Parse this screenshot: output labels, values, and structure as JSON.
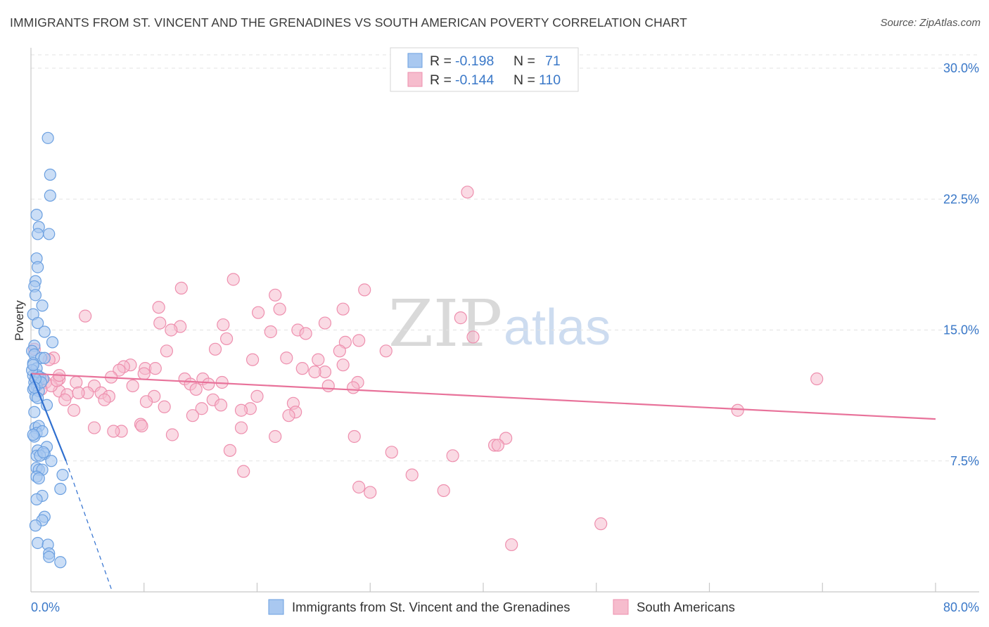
{
  "header": {
    "title": "IMMIGRANTS FROM ST. VINCENT AND THE GRENADINES VS SOUTH AMERICAN POVERTY CORRELATION CHART",
    "source": "Source: ZipAtlas.com"
  },
  "stats": {
    "rows": [
      {
        "r_label": "R =",
        "r_value": "-0.198",
        "n_label": "N =",
        "n_value": "71"
      },
      {
        "r_label": "R =",
        "r_value": "-0.144",
        "n_label": "N =",
        "n_value": "110"
      }
    ]
  },
  "legend": {
    "items": [
      "Immigrants from St. Vincent and the Grenadines",
      "South Americans"
    ]
  },
  "watermark": {
    "zip": "ZIP",
    "atlas": "atlas"
  },
  "colors": {
    "blue_fill": "#a9c8f0",
    "blue_stroke": "#6a9fe0",
    "blue_line": "#2f6fcf",
    "pink_fill": "#f6bccd",
    "pink_stroke": "#ee8fae",
    "pink_line": "#e8729a",
    "tick_text": "#3a78c8",
    "grid": "#e3e3e3"
  },
  "chart_data": {
    "type": "scatter",
    "title": "IMMIGRANTS FROM ST. VINCENT AND THE GRENADINES VS SOUTH AMERICAN POVERTY CORRELATION CHART",
    "xlabel": "",
    "ylabel": "Poverty",
    "xlim": [
      0,
      80
    ],
    "ylim": [
      0,
      30.5
    ],
    "x_tick_labels": [
      "0.0%",
      "80.0%"
    ],
    "y_ticks": [
      7.5,
      15.0,
      22.5,
      30.0
    ],
    "y_tick_labels": [
      "7.5%",
      "15.0%",
      "22.5%",
      "30.0%"
    ],
    "grid": "horizontal dashed",
    "legend_position": "bottom-center",
    "series": [
      {
        "name": "Immigrants from St. Vincent and the Grenadines",
        "color": "#6a9fe0",
        "R": -0.198,
        "N": 71,
        "trend": {
          "x": [
            0,
            3.1
          ],
          "y": [
            12.5,
            7.5
          ],
          "dashed_to": {
            "x": 7.2,
            "y": 0
          }
        },
        "points": [
          [
            1.5,
            26.0
          ],
          [
            1.7,
            23.9
          ],
          [
            1.7,
            22.7
          ],
          [
            0.5,
            21.6
          ],
          [
            0.7,
            20.9
          ],
          [
            0.6,
            20.5
          ],
          [
            1.6,
            20.5
          ],
          [
            0.5,
            19.1
          ],
          [
            0.6,
            18.6
          ],
          [
            0.4,
            17.8
          ],
          [
            0.3,
            17.5
          ],
          [
            0.4,
            17.0
          ],
          [
            1.0,
            16.4
          ],
          [
            0.2,
            15.9
          ],
          [
            0.6,
            15.4
          ],
          [
            1.2,
            14.9
          ],
          [
            1.9,
            14.3
          ],
          [
            0.3,
            14.1
          ],
          [
            0.1,
            13.8
          ],
          [
            0.3,
            13.6
          ],
          [
            0.9,
            13.4
          ],
          [
            1.2,
            13.4
          ],
          [
            0.2,
            13.1
          ],
          [
            0.5,
            12.8
          ],
          [
            0.2,
            12.4
          ],
          [
            0.6,
            12.4
          ],
          [
            0.8,
            12.3
          ],
          [
            1.1,
            12.2
          ],
          [
            0.3,
            12.0
          ],
          [
            0.5,
            11.8
          ],
          [
            0.2,
            11.6
          ],
          [
            0.7,
            11.5
          ],
          [
            0.4,
            11.2
          ],
          [
            0.6,
            11.1
          ],
          [
            1.4,
            10.7
          ],
          [
            0.3,
            10.3
          ],
          [
            0.4,
            9.4
          ],
          [
            0.7,
            9.5
          ],
          [
            0.5,
            9.1
          ],
          [
            1.0,
            9.2
          ],
          [
            0.3,
            8.9
          ],
          [
            1.4,
            8.3
          ],
          [
            0.6,
            8.1
          ],
          [
            1.2,
            7.9
          ],
          [
            0.5,
            7.8
          ],
          [
            0.8,
            7.8
          ],
          [
            1.8,
            7.5
          ],
          [
            0.5,
            7.1
          ],
          [
            0.7,
            7.0
          ],
          [
            1.0,
            7.0
          ],
          [
            2.8,
            6.7
          ],
          [
            0.5,
            6.6
          ],
          [
            0.7,
            6.5
          ],
          [
            2.6,
            5.9
          ],
          [
            1.0,
            5.5
          ],
          [
            0.5,
            5.3
          ],
          [
            1.2,
            4.3
          ],
          [
            1.0,
            4.1
          ],
          [
            0.4,
            3.8
          ],
          [
            0.6,
            2.8
          ],
          [
            1.5,
            2.7
          ],
          [
            1.6,
            2.2
          ],
          [
            1.6,
            2.0
          ],
          [
            2.6,
            1.7
          ],
          [
            0.1,
            12.7
          ],
          [
            0.2,
            9.0
          ],
          [
            0.9,
            12.0
          ],
          [
            0.4,
            12.2
          ],
          [
            0.3,
            11.7
          ],
          [
            1.1,
            8.0
          ],
          [
            0.2,
            13.0
          ]
        ]
      },
      {
        "name": "South Americans",
        "color": "#ee8fae",
        "R": -0.144,
        "N": 110,
        "trend": {
          "x": [
            0,
            80
          ],
          "y": [
            12.5,
            9.9
          ]
        },
        "points": [
          [
            38.6,
            22.9
          ],
          [
            17.9,
            17.9
          ],
          [
            13.3,
            17.4
          ],
          [
            29.5,
            17.3
          ],
          [
            21.6,
            17.0
          ],
          [
            11.3,
            16.3
          ],
          [
            22.0,
            16.2
          ],
          [
            27.6,
            16.2
          ],
          [
            20.1,
            16.0
          ],
          [
            4.8,
            15.8
          ],
          [
            38.0,
            15.7
          ],
          [
            11.4,
            15.4
          ],
          [
            26.0,
            15.4
          ],
          [
            13.2,
            15.2
          ],
          [
            17.0,
            15.3
          ],
          [
            23.6,
            15.0
          ],
          [
            12.4,
            15.0
          ],
          [
            24.3,
            14.8
          ],
          [
            21.2,
            14.9
          ],
          [
            39.1,
            14.6
          ],
          [
            17.3,
            14.5
          ],
          [
            29.0,
            14.4
          ],
          [
            27.8,
            14.3
          ],
          [
            16.3,
            13.9
          ],
          [
            12.0,
            13.8
          ],
          [
            31.4,
            13.8
          ],
          [
            27.3,
            13.8
          ],
          [
            22.6,
            13.4
          ],
          [
            19.6,
            13.3
          ],
          [
            25.4,
            13.3
          ],
          [
            8.8,
            13.0
          ],
          [
            10.1,
            12.8
          ],
          [
            24.0,
            12.8
          ],
          [
            26.0,
            12.6
          ],
          [
            27.6,
            13.0
          ],
          [
            8.2,
            12.9
          ],
          [
            7.8,
            12.7
          ],
          [
            11.0,
            12.8
          ],
          [
            25.1,
            12.6
          ],
          [
            10.0,
            12.5
          ],
          [
            7.1,
            12.3
          ],
          [
            13.6,
            12.2
          ],
          [
            2.5,
            12.2
          ],
          [
            4.0,
            12.0
          ],
          [
            15.2,
            12.2
          ],
          [
            16.9,
            12.0
          ],
          [
            15.7,
            11.9
          ],
          [
            28.9,
            12.0
          ],
          [
            14.1,
            11.9
          ],
          [
            5.6,
            11.8
          ],
          [
            9.0,
            11.8
          ],
          [
            26.3,
            11.8
          ],
          [
            28.5,
            11.7
          ],
          [
            1.3,
            12.0
          ],
          [
            14.6,
            11.6
          ],
          [
            5.0,
            11.4
          ],
          [
            6.2,
            11.4
          ],
          [
            6.9,
            11.2
          ],
          [
            10.9,
            11.2
          ],
          [
            20.0,
            11.2
          ],
          [
            2.5,
            11.5
          ],
          [
            3.2,
            11.3
          ],
          [
            4.2,
            11.4
          ],
          [
            16.1,
            11.0
          ],
          [
            10.2,
            10.9
          ],
          [
            23.2,
            10.8
          ],
          [
            3.0,
            11.0
          ],
          [
            6.5,
            11.0
          ],
          [
            16.8,
            10.7
          ],
          [
            11.8,
            10.6
          ],
          [
            15.1,
            10.5
          ],
          [
            19.4,
            10.5
          ],
          [
            18.6,
            10.4
          ],
          [
            23.4,
            10.3
          ],
          [
            3.8,
            10.4
          ],
          [
            22.8,
            10.1
          ],
          [
            14.3,
            10.1
          ],
          [
            62.5,
            10.4
          ],
          [
            9.7,
            9.6
          ],
          [
            5.6,
            9.4
          ],
          [
            18.6,
            9.4
          ],
          [
            8.0,
            9.2
          ],
          [
            7.3,
            9.2
          ],
          [
            9.8,
            9.5
          ],
          [
            12.5,
            9.0
          ],
          [
            28.6,
            8.9
          ],
          [
            42.0,
            8.8
          ],
          [
            41.0,
            8.4
          ],
          [
            41.3,
            8.4
          ],
          [
            21.6,
            8.9
          ],
          [
            17.6,
            8.1
          ],
          [
            31.9,
            8.0
          ],
          [
            37.3,
            7.8
          ],
          [
            18.8,
            6.9
          ],
          [
            33.7,
            6.7
          ],
          [
            29.0,
            6.0
          ],
          [
            30.0,
            5.7
          ],
          [
            36.5,
            5.8
          ],
          [
            50.4,
            3.9
          ],
          [
            42.5,
            2.7
          ],
          [
            69.5,
            12.2
          ],
          [
            2.0,
            13.4
          ],
          [
            0.3,
            13.9
          ],
          [
            1.8,
            11.8
          ],
          [
            2.3,
            12.1
          ],
          [
            1.0,
            12.2
          ],
          [
            0.9,
            11.6
          ],
          [
            1.6,
            13.3
          ],
          [
            2.5,
            12.4
          ],
          [
            0.6,
            12.0
          ]
        ]
      }
    ]
  }
}
